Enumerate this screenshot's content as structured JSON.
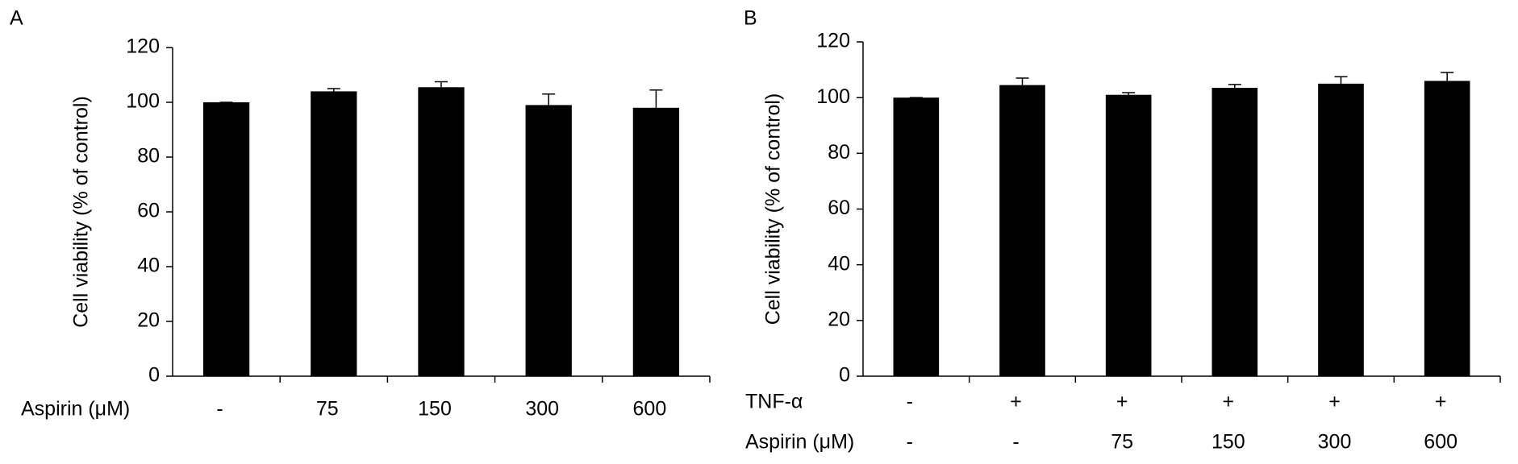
{
  "chart_data": [
    {
      "type": "bar",
      "panel": "A",
      "y_label": "Cell viability (% of control)",
      "category_rows": [
        {
          "label": "Aspirin (μM)",
          "categories": [
            "-",
            "75",
            "150",
            "300",
            "600"
          ]
        }
      ],
      "values": [
        100,
        104,
        105.5,
        99,
        98
      ],
      "errors": [
        0,
        1,
        2,
        4,
        6.5
      ],
      "color": "#000000",
      "ylim": [
        0,
        120
      ],
      "yticks": [
        0,
        20,
        40,
        60,
        80,
        100,
        120
      ]
    },
    {
      "type": "bar",
      "panel": "B",
      "y_label": "Cell viability (% of control)",
      "category_rows": [
        {
          "label": "TNF-α",
          "categories": [
            "-",
            "+",
            "+",
            "+",
            "+",
            "+"
          ]
        },
        {
          "label": "Aspirin (μM)",
          "categories": [
            "-",
            "-",
            "75",
            "150",
            "300",
            "600"
          ]
        }
      ],
      "values": [
        100,
        104.5,
        101,
        103.5,
        105,
        106
      ],
      "errors": [
        0,
        2.5,
        0.8,
        1.2,
        2.5,
        3
      ],
      "color": "#000000",
      "ylim": [
        0,
        120
      ],
      "yticks": [
        0,
        20,
        40,
        60,
        80,
        100,
        120
      ]
    }
  ]
}
